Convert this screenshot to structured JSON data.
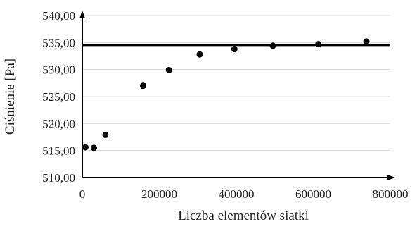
{
  "chart_data": {
    "type": "scatter",
    "title": "",
    "xlabel": "Liczba elementów siatki",
    "ylabel": "Ciśnienie [Pa]",
    "xlim": [
      0,
      800000
    ],
    "ylim": [
      510,
      540
    ],
    "x_ticks": [
      0,
      200000,
      400000,
      600000,
      800000
    ],
    "x_tick_labels": [
      "0",
      "200000",
      "400000",
      "600000",
      "800000"
    ],
    "y_ticks": [
      510,
      515,
      520,
      525,
      530,
      535,
      540
    ],
    "y_tick_labels": [
      "510,00",
      "515,00",
      "520,00",
      "525,00",
      "530,00",
      "535,00",
      "540,00"
    ],
    "grid": "horizontal",
    "legend": "none",
    "series": [
      {
        "x": [
          8000,
          30000,
          60000,
          158000,
          225000,
          305000,
          395000,
          495000,
          613000,
          738000
        ],
        "y": [
          515.6,
          515.5,
          517.9,
          527.0,
          529.9,
          532.8,
          533.8,
          534.4,
          534.7,
          535.2
        ]
      }
    ],
    "reference_line": {
      "y": 534.5
    },
    "colors": {
      "points": "#000000",
      "axes": "#000000",
      "grid": "#d9d9d9"
    }
  }
}
